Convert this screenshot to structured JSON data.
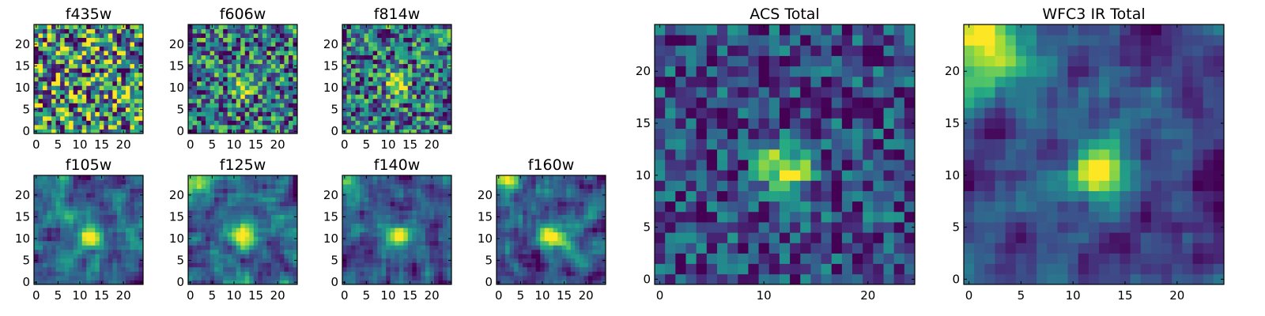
{
  "chart_data": [
    {
      "type": "heatmap",
      "title": "f435w",
      "colormap": "viridis",
      "x_ticks": [
        "0",
        "5",
        "10",
        "15",
        "20"
      ],
      "y_ticks": [
        "0",
        "5",
        "10",
        "15",
        "20"
      ],
      "grid": 25,
      "seed": 11,
      "noise": 0.95,
      "smoothing": 0,
      "peak": {
        "x": 12,
        "y": 10,
        "amplitude": 0.0,
        "sigma": 2.0
      }
    },
    {
      "type": "heatmap",
      "title": "f606w",
      "colormap": "viridis",
      "x_ticks": [
        "0",
        "5",
        "10",
        "15",
        "20"
      ],
      "y_ticks": [
        "0",
        "5",
        "10",
        "15",
        "20"
      ],
      "grid": 25,
      "seed": 23,
      "noise": 0.8,
      "smoothing": 0,
      "peak": {
        "x": 12.5,
        "y": 10.5,
        "amplitude": 0.55,
        "sigma": 1.6
      }
    },
    {
      "type": "heatmap",
      "title": "f814w",
      "colormap": "viridis",
      "x_ticks": [
        "0",
        "5",
        "10",
        "15",
        "20"
      ],
      "y_ticks": [
        "0",
        "5",
        "10",
        "15",
        "20"
      ],
      "grid": 25,
      "seed": 37,
      "noise": 0.8,
      "smoothing": 0,
      "peak": {
        "x": 12,
        "y": 10.5,
        "amplitude": 0.65,
        "sigma": 1.6
      }
    },
    {
      "type": "heatmap",
      "title": "f105w",
      "colormap": "viridis",
      "x_ticks": [
        "0",
        "5",
        "10",
        "15",
        "20"
      ],
      "y_ticks": [
        "0",
        "5",
        "10",
        "15",
        "20"
      ],
      "grid": 25,
      "seed": 41,
      "noise": 0.7,
      "smoothing": 1,
      "peak": {
        "x": 12.5,
        "y": 10.5,
        "amplitude": 0.9,
        "sigma": 2.0
      }
    },
    {
      "type": "heatmap",
      "title": "f125w",
      "colormap": "viridis",
      "x_ticks": [
        "0",
        "5",
        "10",
        "15",
        "20"
      ],
      "y_ticks": [
        "0",
        "5",
        "10",
        "15",
        "20"
      ],
      "grid": 25,
      "seed": 53,
      "noise": 0.7,
      "smoothing": 1,
      "peak": {
        "x": 12.5,
        "y": 10.5,
        "amplitude": 0.85,
        "sigma": 2.0
      },
      "corner": {
        "x": 1,
        "y": 23,
        "amplitude": 0.4,
        "sigma": 3
      }
    },
    {
      "type": "heatmap",
      "title": "f140w",
      "colormap": "viridis",
      "x_ticks": [
        "0",
        "5",
        "10",
        "15",
        "20"
      ],
      "y_ticks": [
        "0",
        "5",
        "10",
        "15",
        "20"
      ],
      "grid": 25,
      "seed": 67,
      "noise": 0.7,
      "smoothing": 1,
      "peak": {
        "x": 12.5,
        "y": 10.5,
        "amplitude": 0.85,
        "sigma": 2.0
      },
      "corner": {
        "x": 1,
        "y": 23,
        "amplitude": 0.5,
        "sigma": 3
      }
    },
    {
      "type": "heatmap",
      "title": "f160w",
      "colormap": "viridis",
      "x_ticks": [
        "0",
        "5",
        "10",
        "15",
        "20"
      ],
      "y_ticks": [
        "0",
        "5",
        "10",
        "15",
        "20"
      ],
      "grid": 25,
      "seed": 79,
      "noise": 0.6,
      "smoothing": 1,
      "peak": {
        "x": 12.5,
        "y": 10.5,
        "amplitude": 0.85,
        "sigma": 2.2
      },
      "corner": {
        "x": 1,
        "y": 23,
        "amplitude": 0.55,
        "sigma": 3
      }
    },
    {
      "type": "heatmap",
      "title": "ACS Total",
      "colormap": "viridis",
      "x_ticks": [
        "0",
        "10",
        "20"
      ],
      "y_ticks": [
        "0",
        "5",
        "10",
        "15",
        "20"
      ],
      "grid": 25,
      "seed": 97,
      "noise": 0.7,
      "smoothing": 0,
      "peak": {
        "x": 12,
        "y": 10.5,
        "amplitude": 1.0,
        "sigma": 1.6
      }
    },
    {
      "type": "heatmap",
      "title": "WFC3 IR Total",
      "colormap": "viridis",
      "x_ticks": [
        "0",
        "5",
        "10",
        "15",
        "20"
      ],
      "y_ticks": [
        "0",
        "5",
        "10",
        "15",
        "20"
      ],
      "grid": 25,
      "seed": 113,
      "noise": 0.5,
      "smoothing": 1,
      "peak": {
        "x": 12.5,
        "y": 10.5,
        "amplitude": 0.95,
        "sigma": 2.0
      },
      "corner": {
        "x": 1,
        "y": 22.5,
        "amplitude": 0.8,
        "sigma": 3.5
      }
    }
  ]
}
